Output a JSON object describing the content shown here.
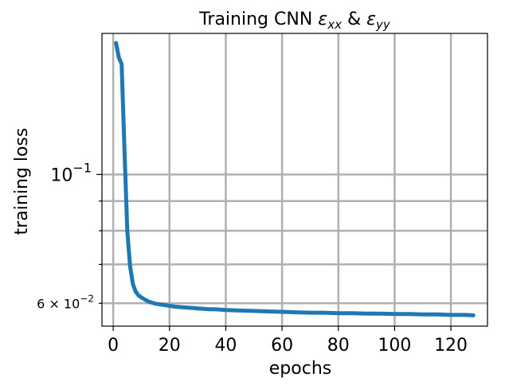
{
  "chart_data": {
    "type": "line",
    "title": "Training CNN εxx & εyy",
    "title_parts": {
      "prefix": "Training CNN ",
      "eps1": "ε",
      "sub1": "xx",
      "amp": " & ",
      "eps2": "ε",
      "sub2": "yy"
    },
    "xlabel": "epochs",
    "ylabel": "training loss",
    "xlim": [
      -4,
      133
    ],
    "ylim": [
      0.0548,
      0.175
    ],
    "yscale": "log",
    "grid": true,
    "xticks": [
      0,
      20,
      40,
      60,
      80,
      100,
      120
    ],
    "xtick_labels": [
      "0",
      "20",
      "40",
      "60",
      "80",
      "100",
      "120"
    ],
    "ytick_major": [
      {
        "value": 0.1,
        "base": "10",
        "exp": "−1"
      }
    ],
    "ytick_labeled_minor": [
      {
        "value": 0.06,
        "mant": "6 × 10",
        "exp": "−2"
      }
    ],
    "ytick_minor": [
      0.06,
      0.07,
      0.08,
      0.09
    ],
    "series": [
      {
        "color": "#1f77b4",
        "x": [
          1,
          2,
          3,
          4,
          5,
          6,
          7,
          8,
          9,
          10,
          11,
          12,
          13,
          14,
          15,
          16,
          17,
          18,
          19,
          20,
          22,
          24,
          26,
          28,
          30,
          32,
          34,
          36,
          38,
          40,
          45,
          50,
          55,
          60,
          65,
          70,
          75,
          80,
          85,
          90,
          95,
          100,
          105,
          110,
          115,
          120,
          125,
          128
        ],
        "y": [
          0.1685,
          0.159,
          0.155,
          0.11,
          0.08,
          0.0695,
          0.0647,
          0.0628,
          0.0619,
          0.0614,
          0.061,
          0.0606,
          0.0603,
          0.0601,
          0.0599,
          0.0598,
          0.0597,
          0.0596,
          0.0595,
          0.0594,
          0.0592,
          0.0591,
          0.059,
          0.0589,
          0.0588,
          0.0587,
          0.0586,
          0.0586,
          0.0585,
          0.0584,
          0.0583,
          0.0582,
          0.0581,
          0.058,
          0.0579,
          0.0578,
          0.0578,
          0.0577,
          0.0577,
          0.0576,
          0.0576,
          0.0575,
          0.0575,
          0.0574,
          0.0574,
          0.0573,
          0.0573,
          0.0572
        ]
      }
    ]
  }
}
